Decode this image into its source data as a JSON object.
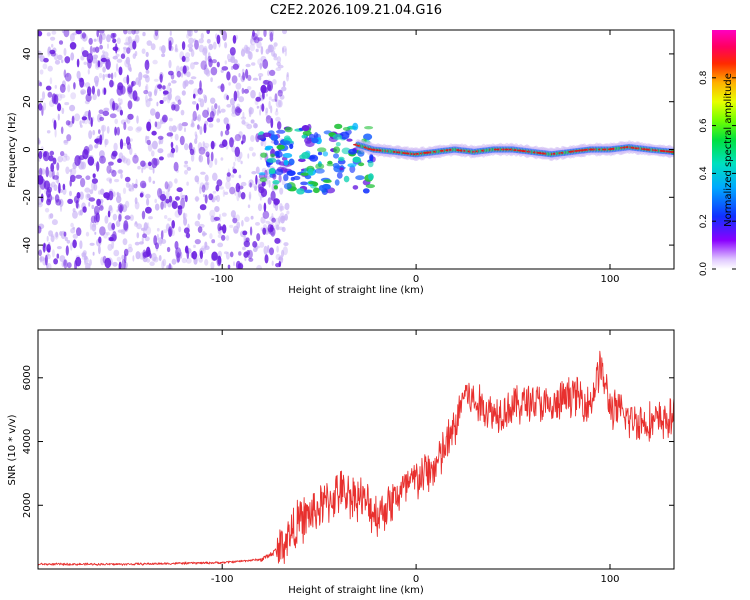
{
  "title": "C2E2.2026.109.21.04.G16",
  "colors": {
    "snr_line": "#e8302e",
    "signal_hot": "#d81e1e",
    "signal_mid": "#23c23a",
    "signal_cool": "#1e64ff",
    "noise": "#6a1fe0",
    "noise_light": "#c9b3f5"
  },
  "chart_data": [
    {
      "id": "spectrogram",
      "type": "heatmap",
      "title": "C2E2.2026.109.21.04.G16",
      "xlabel": "Height of straight line (km)",
      "ylabel": "Frequency (Hz)",
      "xlim": [
        -195,
        133
      ],
      "ylim": [
        -50,
        50
      ],
      "xticks": [
        -100,
        0,
        100
      ],
      "yticks": [
        -40,
        -20,
        0,
        20,
        40
      ],
      "colorbar": {
        "label": "Normalized spectral amplitude",
        "range": [
          0,
          1
        ],
        "ticks": [
          "0.0",
          "0.2",
          "0.4",
          "0.6",
          "0.8"
        ]
      },
      "regions": [
        {
          "name": "noise",
          "x": [
            -195,
            -70
          ],
          "y": [
            -50,
            50
          ]
        },
        {
          "name": "scattered-signal",
          "x": [
            -80,
            -22
          ],
          "y": [
            -18,
            10
          ]
        },
        {
          "name": "stable-carrier",
          "x": [
            -22,
            133
          ],
          "y": [
            -3,
            3
          ]
        }
      ],
      "trace": {
        "x": [
          -80,
          -70,
          -60,
          -50,
          -40,
          -30,
          -22,
          -10,
          0,
          10,
          20,
          30,
          40,
          50,
          60,
          70,
          80,
          90,
          100,
          110,
          120,
          133
        ],
        "y": [
          -12,
          5,
          -5,
          3,
          -8,
          2,
          0,
          -1,
          -2,
          -1,
          0,
          -1,
          0,
          0,
          -1,
          -2,
          -1,
          0,
          0,
          1,
          0,
          -1
        ]
      }
    },
    {
      "id": "snr",
      "type": "line",
      "xlabel": "Height of straight line (km)",
      "ylabel": "SNR (10 * v/v)",
      "xlim": [
        -195,
        133
      ],
      "ylim": [
        0,
        7500
      ],
      "xticks": [
        -100,
        0,
        100
      ],
      "yticks": [
        2000,
        4000,
        6000
      ],
      "series": [
        {
          "name": "SNR",
          "x": [
            -195,
            -150,
            -100,
            -80,
            -75,
            -70,
            -60,
            -50,
            -40,
            -30,
            -20,
            -10,
            0,
            10,
            20,
            25,
            30,
            40,
            50,
            60,
            70,
            80,
            90,
            95,
            100,
            110,
            120,
            133
          ],
          "y": [
            150,
            150,
            200,
            300,
            450,
            700,
            1500,
            1900,
            2400,
            2300,
            1700,
            2300,
            2800,
            3200,
            4400,
            5600,
            5200,
            4900,
            5100,
            5300,
            5000,
            5500,
            5200,
            6400,
            5100,
            4700,
            4600,
            4700
          ]
        }
      ]
    }
  ]
}
